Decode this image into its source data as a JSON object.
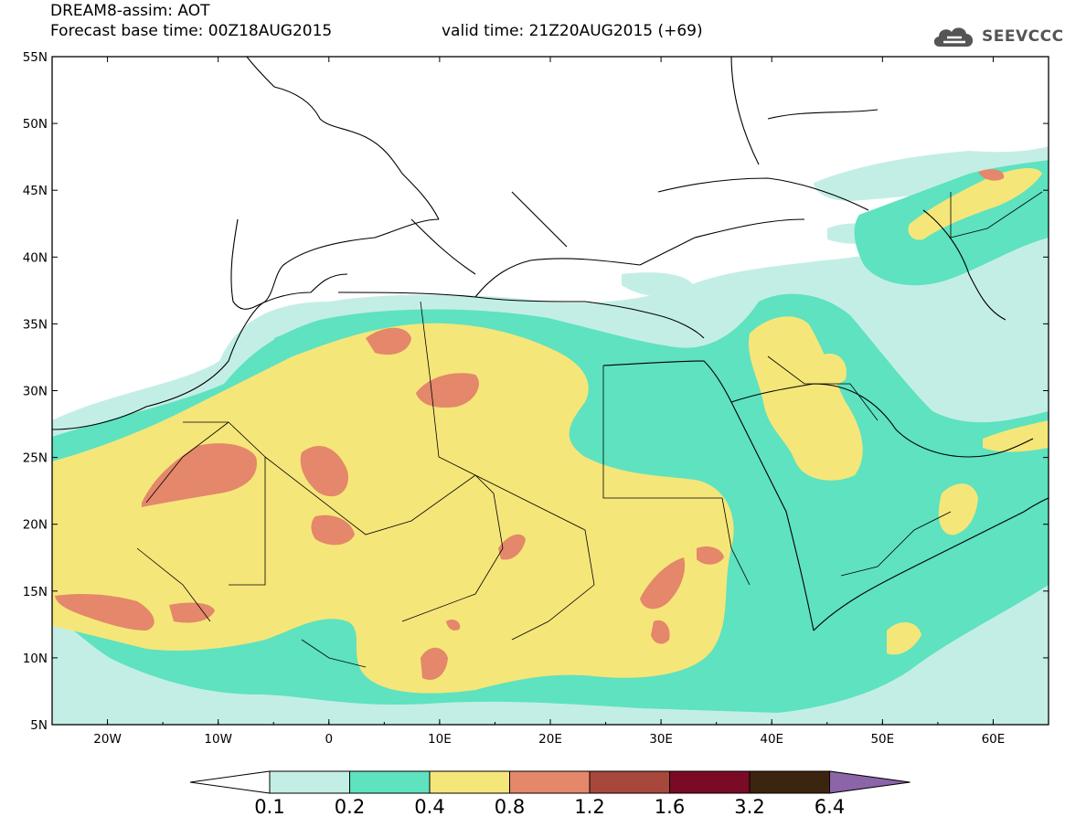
{
  "header": {
    "title": "DREAM8-assim: AOT",
    "base_time": "Forecast base time: 00Z18AUG2015",
    "valid_time": "valid time: 21Z20AUG2015 (+69)"
  },
  "logo": {
    "text": "SEEVCCC",
    "icon": "cloud-logo-icon"
  },
  "axes": {
    "lat_labels": [
      "55N",
      "50N",
      "45N",
      "40N",
      "35N",
      "30N",
      "25N",
      "20N",
      "15N",
      "10N",
      "5N"
    ],
    "lon_labels": [
      "20W",
      "10W",
      "0",
      "10E",
      "20E",
      "30E",
      "40E",
      "50E",
      "60E"
    ]
  },
  "colorbar": {
    "labels": [
      "0.1",
      "0.2",
      "0.4",
      "0.8",
      "1.2",
      "1.6",
      "3.2",
      "6.4"
    ],
    "colors": [
      "#ffffff",
      "#c3eee6",
      "#5ee2bf",
      "#f5e67a",
      "#e4876a",
      "#a8473c",
      "#7a0a25",
      "#3b2410",
      "#8c64a8"
    ]
  },
  "map": {
    "background": "#ffffff",
    "level_colors": {
      "l1": "#c3eee6",
      "l2": "#5ee2bf",
      "l3": "#f5e67a",
      "l4": "#e4876a"
    }
  }
}
